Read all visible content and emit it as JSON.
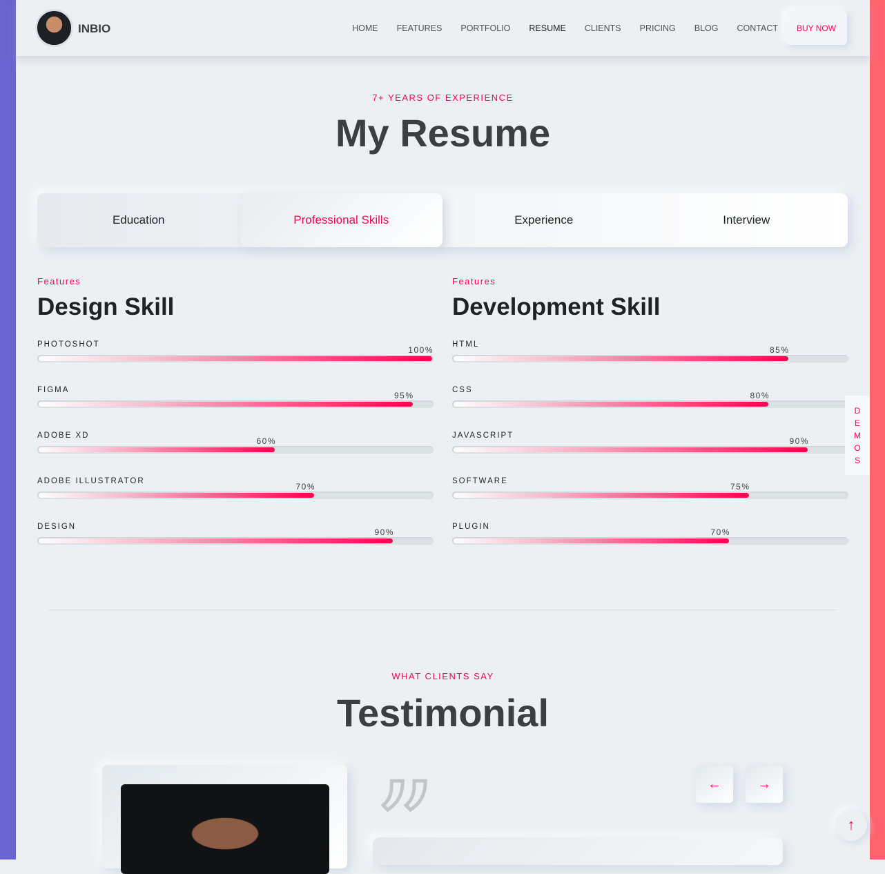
{
  "colors": {
    "accent": "#ff014f",
    "left_strip": "#6a64d0",
    "right_strip": "#fe636d"
  },
  "header": {
    "brand": "INBIO",
    "nav": [
      "HOME",
      "FEATURES",
      "PORTFOLIO",
      "RESUME",
      "CLIENTS",
      "PRICING",
      "BLOG",
      "CONTACT"
    ],
    "active_nav": "RESUME",
    "buy": "BUY NOW"
  },
  "resume": {
    "kicker": "7+ YEARS OF EXPERIENCE",
    "title": "My Resume",
    "tabs": [
      "Education",
      "Professional Skills",
      "Experience",
      "Interview"
    ],
    "active_tab": "Professional Skills"
  },
  "design": {
    "kicker": "Features",
    "title": "Design Skill",
    "skills": [
      {
        "name": "PHOTOSHOT",
        "percent": 100,
        "label": "100%"
      },
      {
        "name": "FIGMA",
        "percent": 95,
        "label": "95%"
      },
      {
        "name": "ADOBE XD",
        "percent": 60,
        "label": "60%"
      },
      {
        "name": "ADOBE ILLUSTRATOR",
        "percent": 70,
        "label": "70%"
      },
      {
        "name": "DESIGN",
        "percent": 90,
        "label": "90%"
      }
    ]
  },
  "development": {
    "kicker": "Features",
    "title": "Development Skill",
    "skills": [
      {
        "name": "HTML",
        "percent": 85,
        "label": "85%"
      },
      {
        "name": "CSS",
        "percent": 80,
        "label": "80%"
      },
      {
        "name": "JAVASCRIPT",
        "percent": 90,
        "label": "90%"
      },
      {
        "name": "SOFTWARE",
        "percent": 75,
        "label": "75%"
      },
      {
        "name": "PLUGIN",
        "percent": 70,
        "label": "70%"
      }
    ]
  },
  "demos": [
    "D",
    "E",
    "M",
    "O",
    "S"
  ],
  "testimonial": {
    "kicker": "WHAT CLIENTS SAY",
    "title": "Testimonial",
    "prev_icon": "arrow-left-icon",
    "next_icon": "arrow-right-icon"
  },
  "scroll_top_icon": "arrow-up-icon"
}
